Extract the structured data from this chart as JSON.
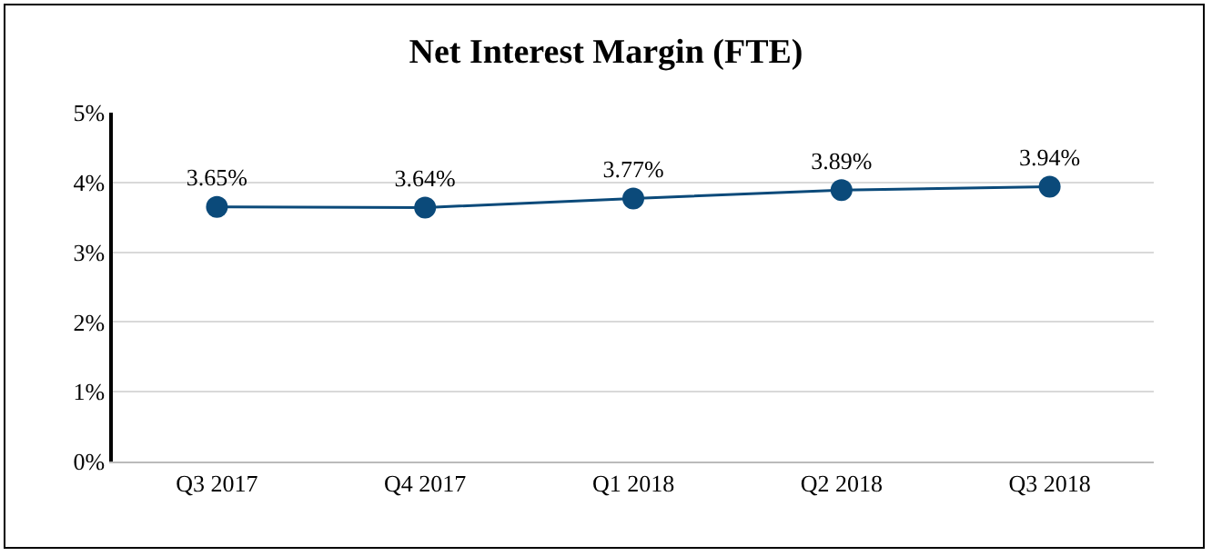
{
  "chart_data": {
    "type": "line",
    "title": "Net Interest Margin (FTE)",
    "categories": [
      "Q3 2017",
      "Q4 2017",
      "Q1 2018",
      "Q2 2018",
      "Q3 2018"
    ],
    "series": [
      {
        "color": "#0b4a7a",
        "values": [
          3.65,
          3.64,
          3.77,
          3.89,
          3.94
        ],
        "value_labels": [
          "3.65%",
          "3.64%",
          "3.77%",
          "3.89%",
          "3.94%"
        ]
      }
    ],
    "ylim": [
      0,
      5
    ],
    "yticks": [
      {
        "value": 0,
        "label": "0%"
      },
      {
        "value": 1,
        "label": "1%"
      },
      {
        "value": 2,
        "label": "2%"
      },
      {
        "value": 3,
        "label": "3%"
      },
      {
        "value": 4,
        "label": "4%"
      },
      {
        "value": 5,
        "label": "5%"
      }
    ],
    "grid": "y",
    "marker": "circle",
    "line_style": "solid"
  }
}
